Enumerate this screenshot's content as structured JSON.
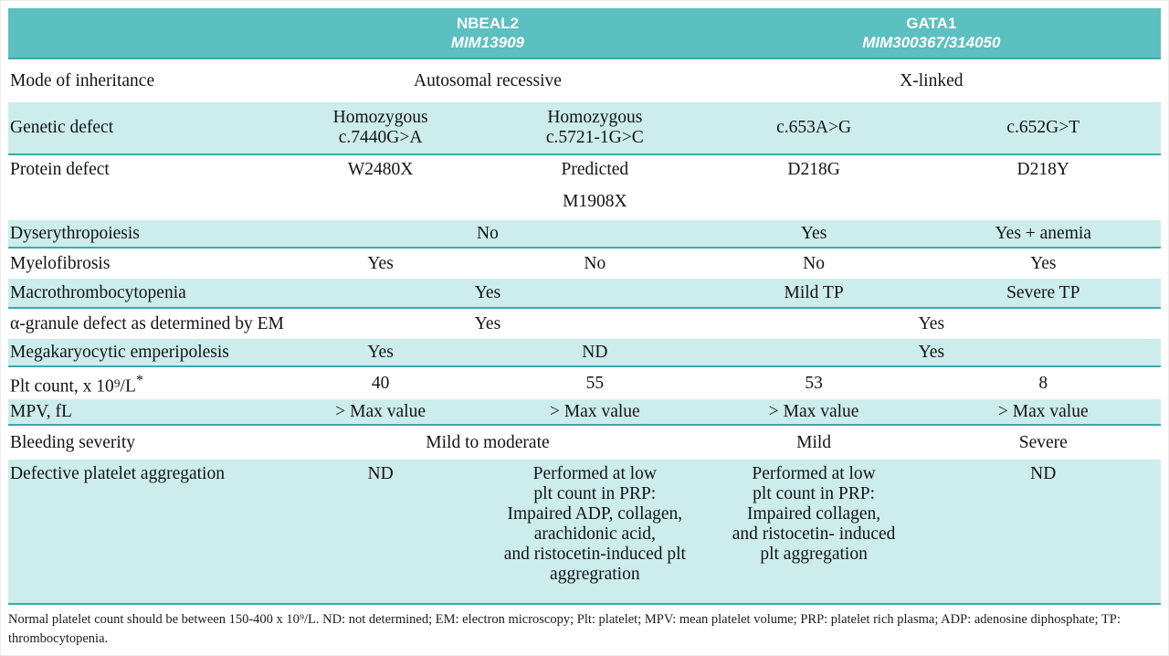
{
  "colors": {
    "header_bg": "#5cbfc0",
    "shaded_row_bg": "#cdecec",
    "teal_border": "#3aabac",
    "header_text": "#ffffff",
    "body_text": "#141414"
  },
  "table": {
    "header": {
      "groups": [
        {
          "gene": "NBEAL2",
          "mim": "MIM13909"
        },
        {
          "gene": "GATA1",
          "mim": "MIM300367/314050"
        }
      ]
    },
    "rows": [
      {
        "label": "Mode of inheritance",
        "shaded": false,
        "cells": [
          {
            "text": "Autosomal recessive",
            "span": 2
          },
          {
            "text": "X-linked",
            "span": 2
          }
        ]
      },
      {
        "label": "Genetic defect",
        "shaded": true,
        "cells": [
          {
            "lines": [
              "Homozygous",
              "c.7440G>A"
            ]
          },
          {
            "lines": [
              "Homozygous",
              "c.5721-1G>C"
            ]
          },
          {
            "text": "c.653A>G"
          },
          {
            "text": "c.652G>T"
          }
        ]
      },
      {
        "label": "Protein defect",
        "shaded": false,
        "top": true,
        "cells": [
          {
            "text": "W2480X"
          },
          {
            "lines": [
              "Predicted",
              "M1908X"
            ],
            "gap": true
          },
          {
            "text": "D218G"
          },
          {
            "text": "D218Y"
          }
        ]
      },
      {
        "label": "Dyserythropoiesis",
        "shaded": true,
        "cells": [
          {
            "text": "No",
            "span": 2
          },
          {
            "text": "Yes"
          },
          {
            "text": "Yes + anemia"
          }
        ]
      },
      {
        "label": "Myelofibrosis",
        "shaded": false,
        "cells": [
          {
            "text": "Yes"
          },
          {
            "text": "No"
          },
          {
            "text": "No"
          },
          {
            "text": "Yes"
          }
        ]
      },
      {
        "label": "Macrothrombocytopenia",
        "shaded": true,
        "cells": [
          {
            "text": "Yes",
            "span": 2
          },
          {
            "text": "Mild TP"
          },
          {
            "text": "Severe TP"
          }
        ]
      },
      {
        "label": "α-granule defect as determined by EM",
        "shaded": false,
        "cells": [
          {
            "text": "Yes",
            "span": 2
          },
          {
            "text": "Yes",
            "span": 2
          }
        ]
      },
      {
        "label": "Megakaryocytic emperipolesis",
        "shaded": true,
        "cells": [
          {
            "text": "Yes"
          },
          {
            "text": "ND"
          },
          {
            "text": "Yes",
            "span": 2
          }
        ]
      },
      {
        "label": "Plt count, x 10⁹/L*",
        "shaded": false,
        "cells": [
          {
            "text": "40"
          },
          {
            "text": "55"
          },
          {
            "text": "53"
          },
          {
            "text": "8"
          }
        ]
      },
      {
        "label": "MPV, fL",
        "shaded": true,
        "cells": [
          {
            "text": "> Max value"
          },
          {
            "text": "> Max value"
          },
          {
            "text": "> Max value"
          },
          {
            "text": "> Max value"
          }
        ]
      },
      {
        "label": "Bleeding severity",
        "shaded": false,
        "cells": [
          {
            "text": "Mild to moderate",
            "span": 2
          },
          {
            "text": "Mild"
          },
          {
            "text": "Severe"
          }
        ]
      },
      {
        "label": "Defective platelet aggregation",
        "shaded": true,
        "top": true,
        "wide_lines": true,
        "cells": [
          {
            "text": "ND"
          },
          {
            "lines": [
              "Performed at low",
              "plt count in PRP:",
              "Impaired ADP, collagen,",
              "arachidonic acid,",
              "and ristocetin-induced plt",
              "aggregration"
            ]
          },
          {
            "lines": [
              "Performed at low",
              "plt count in PRP:",
              "Impaired collagen,",
              "and ristocetin- induced",
              "plt aggregation"
            ]
          },
          {
            "text": "ND"
          }
        ]
      }
    ],
    "footnote": "Normal platelet count should be between 150-400 x 10⁹/L. ND: not determined; EM: electron microscopy; Plt: platelet; MPV: mean platelet volume; PRP: platelet rich plasma; ADP: adenosine diphosphate; TP: thrombocytopenia."
  }
}
